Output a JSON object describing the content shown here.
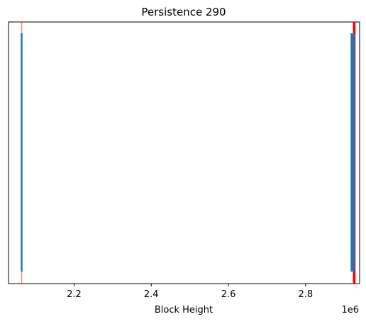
{
  "chart_data": {
    "type": "event_lines",
    "title": "Persistence 290",
    "xlabel": "Block Height",
    "ylabel": "",
    "x_offset_label": "1e6",
    "xlim": [
      2.03,
      2.94
    ],
    "x_ticks": [
      2.2,
      2.4,
      2.6,
      2.8
    ],
    "x_tick_labels": [
      "2.2",
      "2.4",
      "2.6",
      "2.8"
    ],
    "y_ticks_visible": false,
    "grid": false,
    "series": [
      {
        "role": "event markers",
        "color": "#1f77b4",
        "x_values": [
          2.064,
          2.919,
          2.921,
          2.923,
          2.925
        ]
      },
      {
        "role": "reference lines",
        "color": "#ff0000",
        "x_values": [
          2.064,
          2.925,
          2.927
        ]
      }
    ]
  }
}
